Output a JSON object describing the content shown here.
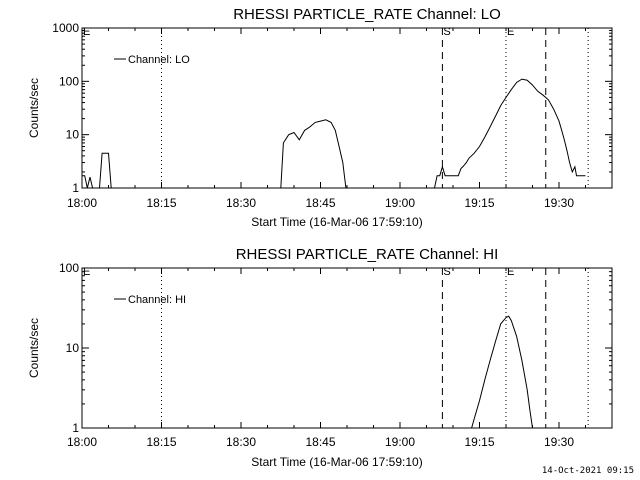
{
  "footer_timestamp": "14-Oct-2021 09:15",
  "chart_data": [
    {
      "type": "line",
      "title": "RHESSI PARTICLE_RATE Channel: LO",
      "xlabel": "Start Time (16-Mar-06 17:59:10)",
      "ylabel": "Counts/sec",
      "yscale": "log",
      "ylim": [
        1,
        1000
      ],
      "xlim_minutes": [
        0,
        100
      ],
      "x_ticks": [
        "18:00",
        "18:15",
        "18:30",
        "18:45",
        "19:00",
        "19:15",
        "19:30"
      ],
      "y_ticks": [
        "1",
        "10",
        "100",
        "1000"
      ],
      "legend": {
        "placement": "top-left",
        "entries": [
          "Channel: LO"
        ]
      },
      "markers": [
        {
          "label": "E",
          "minute": 0,
          "style": "solid"
        },
        {
          "label": "",
          "minute": 15,
          "style": "dotted"
        },
        {
          "label": "S",
          "minute": 68,
          "style": "dashed"
        },
        {
          "label": "E",
          "minute": 80,
          "style": "dotted"
        },
        {
          "label": "",
          "minute": 87.5,
          "style": "dashed"
        },
        {
          "label": "",
          "minute": 95.5,
          "style": "dotted"
        }
      ],
      "series": [
        {
          "name": "Channel: LO",
          "segments": [
            [
              [
                0,
                1.7
              ],
              [
                0.5,
                1.7
              ],
              [
                1,
                1
              ],
              [
                1.5,
                1.6
              ],
              [
                2,
                1
              ]
            ],
            [
              [
                3.3,
                1
              ],
              [
                3.8,
                4.5
              ],
              [
                5,
                4.5
              ],
              [
                5.5,
                1
              ]
            ],
            [
              [
                37.5,
                1
              ],
              [
                38,
                7
              ],
              [
                39,
                10
              ],
              [
                40,
                11
              ],
              [
                41,
                8
              ],
              [
                42,
                12
              ],
              [
                43,
                14
              ],
              [
                44,
                17
              ],
              [
                45,
                18
              ],
              [
                46,
                19
              ],
              [
                47,
                17
              ],
              [
                47.8,
                12
              ],
              [
                48.5,
                6
              ],
              [
                49.2,
                3
              ],
              [
                49.8,
                1
              ]
            ],
            [
              [
                66.5,
                1
              ],
              [
                67,
                1.7
              ],
              [
                67.5,
                1.7
              ],
              [
                68,
                2.5
              ],
              [
                68.5,
                1.7
              ],
              [
                70,
                1.7
              ],
              [
                71,
                1.7
              ],
              [
                71.5,
                2.3
              ],
              [
                72,
                2.6
              ],
              [
                72.5,
                3
              ],
              [
                73,
                3.6
              ],
              [
                74,
                4.5
              ],
              [
                75,
                6
              ],
              [
                76,
                9
              ],
              [
                77,
                14
              ],
              [
                78,
                22
              ],
              [
                79,
                35
              ],
              [
                80,
                50
              ],
              [
                81,
                70
              ],
              [
                82,
                95
              ],
              [
                83,
                110
              ],
              [
                84,
                105
              ],
              [
                85,
                85
              ],
              [
                86,
                65
              ],
              [
                87,
                55
              ],
              [
                88,
                45
              ],
              [
                89,
                30
              ],
              [
                90,
                18
              ],
              [
                90.5,
                12
              ],
              [
                91,
                8
              ],
              [
                91.5,
                5
              ],
              [
                92,
                3
              ],
              [
                92.5,
                2
              ],
              [
                93,
                2.5
              ],
              [
                93.3,
                1.7
              ],
              [
                95,
                1.7
              ]
            ]
          ]
        }
      ]
    },
    {
      "type": "line",
      "title": "RHESSI PARTICLE_RATE Channel: HI",
      "xlabel": "Start Time (16-Mar-06 17:59:10)",
      "ylabel": "Counts/sec",
      "yscale": "log",
      "ylim": [
        1,
        100
      ],
      "xlim_minutes": [
        0,
        100
      ],
      "x_ticks": [
        "18:00",
        "18:15",
        "18:30",
        "18:45",
        "19:00",
        "19:15",
        "19:30"
      ],
      "y_ticks": [
        "1",
        "10",
        "100"
      ],
      "legend": {
        "placement": "top-left",
        "entries": [
          "Channel: HI"
        ]
      },
      "markers": [
        {
          "label": "E",
          "minute": 0,
          "style": "solid"
        },
        {
          "label": "",
          "minute": 15,
          "style": "dotted"
        },
        {
          "label": "S",
          "minute": 68,
          "style": "dashed"
        },
        {
          "label": "E",
          "minute": 80,
          "style": "dotted"
        },
        {
          "label": "",
          "minute": 87.5,
          "style": "dashed"
        },
        {
          "label": "",
          "minute": 95.5,
          "style": "dotted"
        }
      ],
      "series": [
        {
          "name": "Channel: HI",
          "segments": [
            [
              [
                73.5,
                1
              ],
              [
                74,
                1.3
              ],
              [
                75,
                2.2
              ],
              [
                76,
                4
              ],
              [
                77,
                7
              ],
              [
                78,
                12
              ],
              [
                79,
                20
              ],
              [
                80,
                24
              ],
              [
                80.5,
                25
              ],
              [
                81,
                22
              ],
              [
                82,
                14
              ],
              [
                83,
                7
              ],
              [
                84,
                3
              ],
              [
                84.5,
                1.7
              ],
              [
                85,
                1
              ]
            ]
          ]
        }
      ]
    }
  ]
}
